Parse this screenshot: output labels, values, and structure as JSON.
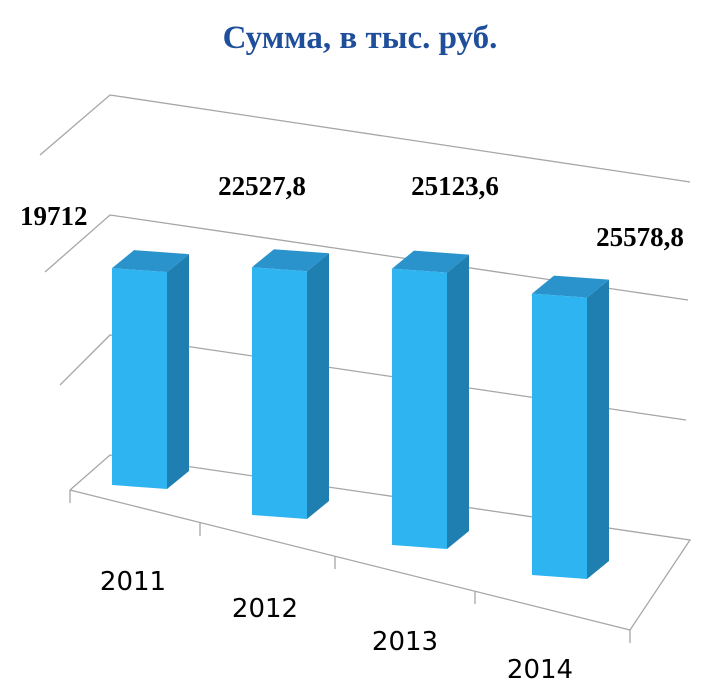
{
  "chart_data": {
    "type": "bar3d",
    "title": "Сумма, в тыс. руб.",
    "categories": [
      "2011",
      "2012",
      "2013",
      "2014"
    ],
    "values": [
      19712,
      22527.8,
      25123.6,
      25578.8
    ],
    "value_labels": [
      "19712",
      "22527,8",
      "25123,6",
      "25578,8"
    ],
    "color": "#2eb4f0",
    "ylim": [
      0,
      30000
    ]
  }
}
